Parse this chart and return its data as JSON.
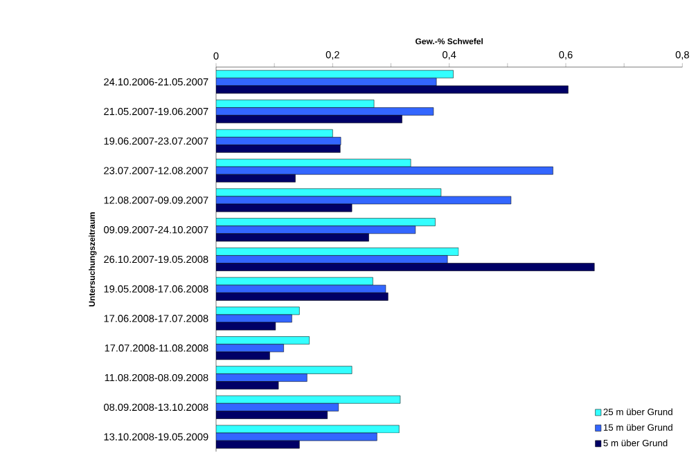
{
  "chart_data": {
    "type": "bar",
    "orientation": "horizontal",
    "xlabel": "Gew.-% Schwefel",
    "ylabel": "Untersuchungszeitraum",
    "categories": [
      "24.10.2006-21.05.2007",
      "21.05.2007-19.06.2007",
      "19.06.2007-23.07.2007",
      "23.07.2007-12.08.2007",
      "12.08.2007-09.09.2007",
      "09.09.2007-24.10.2007",
      "26.10.2007-19.05.2008",
      "19.05.2008-17.06.2008",
      "17.06.2008-17.07.2008",
      "17.07.2008-11.08.2008",
      "11.08.2008-08.09.2008",
      "08.09.2008-13.10.2008",
      "13.10.2008-19.05.2009"
    ],
    "series": [
      {
        "name": "25 m über Grund",
        "color": "#33ffff",
        "values": [
          0.407,
          0.271,
          0.2,
          0.334,
          0.386,
          0.376,
          0.416,
          0.269,
          0.143,
          0.16,
          0.233,
          0.316,
          0.314
        ]
      },
      {
        "name": "15 m über Grund",
        "color": "#3366ff",
        "values": [
          0.378,
          0.373,
          0.214,
          0.578,
          0.506,
          0.342,
          0.397,
          0.291,
          0.13,
          0.116,
          0.156,
          0.21,
          0.276
        ]
      },
      {
        "name": "5 m über Grund",
        "color": "#000066",
        "values": [
          0.604,
          0.319,
          0.213,
          0.136,
          0.233,
          0.262,
          0.649,
          0.295,
          0.102,
          0.092,
          0.107,
          0.191,
          0.143
        ]
      }
    ],
    "xlim": [
      0,
      0.8
    ],
    "xticks": [
      0,
      {
        "value": 0.1,
        "label": null
      },
      {
        "value": 0.2,
        "label": "0,2"
      },
      {
        "value": 0.3,
        "label": null
      },
      {
        "value": 0.4,
        "label": "0,4"
      },
      {
        "value": 0.5,
        "label": null
      },
      {
        "value": 0.6,
        "label": "0,6"
      },
      {
        "value": 0.7,
        "label": null
      },
      {
        "value": 0.8,
        "label": "0,8"
      }
    ],
    "legend": "bottom right",
    "grid": false
  }
}
